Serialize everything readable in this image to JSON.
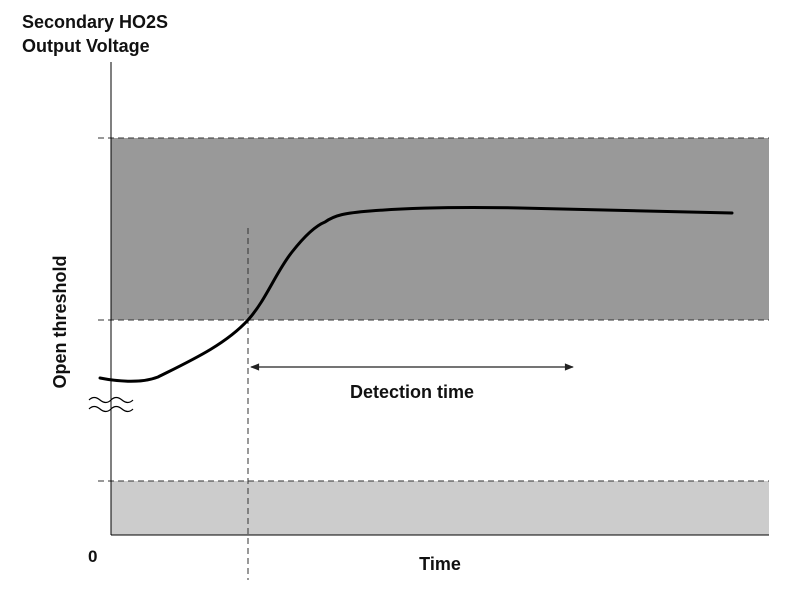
{
  "title": {
    "line1": "Secondary HO2S",
    "line2": "Output Voltage"
  },
  "y_axis_label": "Open threshold",
  "x_axis_label": "Time",
  "origin_label": "0",
  "annotation": "Detection time",
  "colors": {
    "upper_band": "#999999",
    "lower_band": "#cccccc",
    "curve": "#000000",
    "axis": "#000000"
  }
}
